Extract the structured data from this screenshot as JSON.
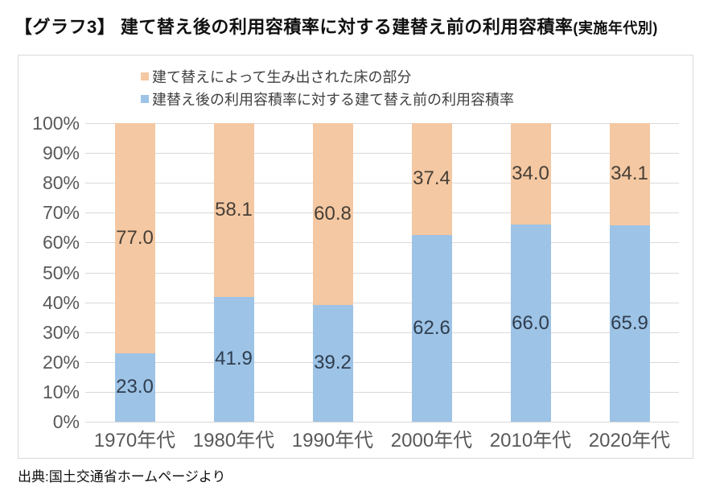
{
  "page": {
    "title_prefix": "【グラフ3】",
    "title_main": " 建て替え後の利用容積率に対する建替え前の利用容積率",
    "title_suffix": "(実施年代別)",
    "source": "出典:国土交通省ホームページより"
  },
  "chart_data": {
    "type": "bar",
    "stacked": true,
    "title": "建て替え後の利用容積率に対する建替え前の利用容積率(実施年代別)",
    "categories": [
      "1970年代",
      "1980年代",
      "1990年代",
      "2000年代",
      "2010年代",
      "2020年代"
    ],
    "series": [
      {
        "name": "建替え後の利用容積率に対する建て替え前の利用容積率",
        "color": "#9DC3E6",
        "label_color": "#2F3D4E",
        "values": [
          23.0,
          41.9,
          39.2,
          62.6,
          66.0,
          65.9
        ]
      },
      {
        "name": "建て替えによって生み出された床の部分",
        "color": "#F4C8A2",
        "label_color": "#473F37",
        "values": [
          77.0,
          58.1,
          60.8,
          37.4,
          34.0,
          34.1
        ]
      }
    ],
    "y_ticks": [
      "100%",
      "90%",
      "80%",
      "70%",
      "60%",
      "50%",
      "40%",
      "30%",
      "20%",
      "10%",
      "0%"
    ],
    "ylim": [
      0,
      100
    ],
    "y_tick_step": 10,
    "grid": true,
    "legend_position": "top-inside",
    "xlabel": "",
    "ylabel": ""
  },
  "colors": {
    "grid": "#D9D9D9",
    "chart_border": "#D9D9D9",
    "axis_text": "#595959",
    "legend_text": "#404040",
    "title_text": "#111111"
  }
}
